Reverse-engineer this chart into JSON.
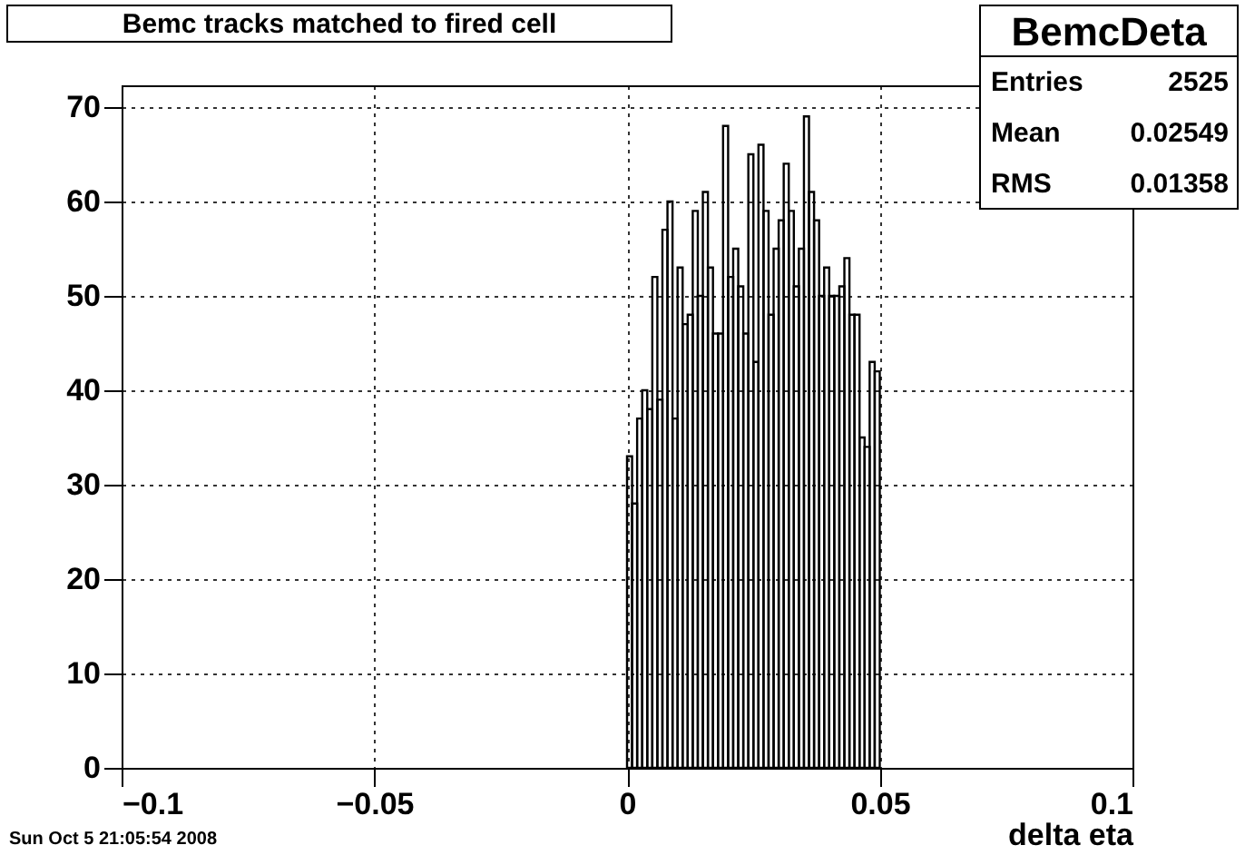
{
  "chart_data": {
    "type": "histogram",
    "title": "Bemc tracks matched to fired cell",
    "xlabel": "delta eta",
    "bins": [
      0,
      0.001,
      0.002,
      0.003,
      0.004,
      0.005,
      0.006,
      0.007,
      0.008,
      0.009,
      0.01,
      0.011,
      0.012,
      0.013,
      0.014,
      0.015,
      0.016,
      0.017,
      0.018,
      0.019,
      0.02,
      0.021,
      0.022,
      0.023,
      0.024,
      0.025,
      0.026,
      0.027,
      0.028,
      0.029,
      0.03,
      0.031,
      0.032,
      0.033,
      0.034,
      0.035,
      0.036,
      0.037,
      0.038,
      0.039,
      0.04,
      0.041,
      0.042,
      0.043,
      0.044,
      0.045,
      0.046,
      0.047,
      0.048,
      0.049,
      0.05
    ],
    "values": [
      33,
      28,
      37,
      40,
      38,
      52,
      39,
      57,
      60,
      37,
      53,
      47,
      48,
      59,
      50,
      61,
      53,
      46,
      46,
      68,
      52,
      55,
      51,
      46,
      65,
      43,
      66,
      59,
      48,
      55,
      58,
      64,
      59,
      51,
      55,
      69,
      61,
      58,
      50,
      53,
      50,
      50,
      51,
      54,
      48,
      48,
      35,
      34,
      43,
      42
    ],
    "color": "#000000",
    "xlim": [
      -0.1,
      0.1
    ],
    "ylim": [
      0,
      72.3
    ],
    "xticks": [
      -0.1,
      -0.05,
      0,
      0.05,
      0.1
    ],
    "yticks": [
      0,
      10,
      20,
      30,
      40,
      50,
      60,
      70
    ],
    "grid": true,
    "annotations": [
      "BemcDeta",
      "Entries",
      "2525",
      "Mean",
      "0.02549",
      "RMS",
      "0.01358",
      "Sun Oct  5 21:05:54 2008"
    ]
  }
}
